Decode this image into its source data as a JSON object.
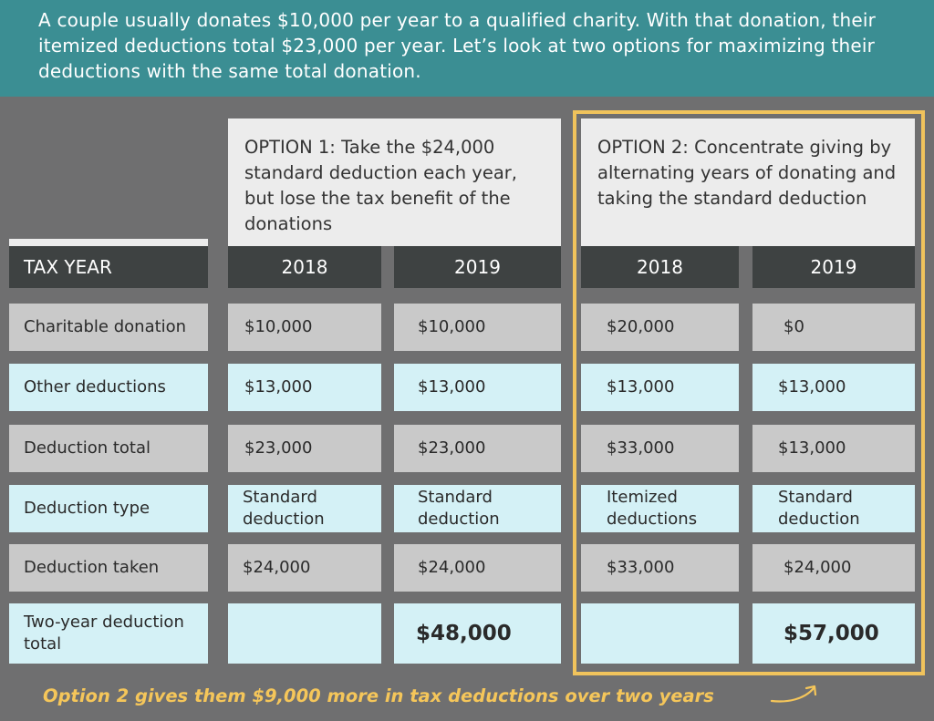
{
  "intro": "A couple usually donates $10,000 per year to a qualified charity. With that donation, their itemized deductions total $23,000 per year. Let’s look at two options for maximizing their deductions with the same total donation.",
  "option1": {
    "heading": "OPTION 1: Take the $24,000 standard deduction each year, but lose the tax benefit of the donations"
  },
  "option2": {
    "heading": "OPTION 2: Concentrate giving by alternating years of donating and taking the standard deduction"
  },
  "table": {
    "header": {
      "label": "TAX YEAR",
      "years": [
        "2018",
        "2019",
        "2018",
        "2019"
      ]
    },
    "rows": [
      {
        "label": "Charitable donation",
        "cells": [
          "$10,000",
          "$10,000",
          "$20,000",
          "$0"
        ]
      },
      {
        "label": "Other deductions",
        "cells": [
          "$13,000",
          "$13,000",
          "$13,000",
          "$13,000"
        ]
      },
      {
        "label": "Deduction total",
        "cells": [
          "$23,000",
          "$23,000",
          "$33,000",
          "$13,000"
        ]
      },
      {
        "label": "Deduction type",
        "cells": [
          "Standard deduction",
          "Standard deduction",
          "Itemized deductions",
          "Standard deduction"
        ]
      },
      {
        "label": "Deduction taken",
        "cells": [
          "$24,000",
          "$24,000",
          "$33,000",
          "$24,000"
        ]
      },
      {
        "label": "Two-year deduction total",
        "cells": [
          "",
          "$48,000",
          "",
          "$57,000"
        ]
      }
    ]
  },
  "footer": "Option 2 gives them $9,000 more in tax deductions over two years",
  "colors": {
    "banner": "#3b8e93",
    "background": "#6f6f70",
    "highlight": "#f0c35c",
    "cyan_row": "#d4f1f6",
    "gray_row": "#c9c9c9",
    "header": "#3e4242"
  },
  "icons": {
    "footer_arrow": "curved-arrow-icon"
  }
}
